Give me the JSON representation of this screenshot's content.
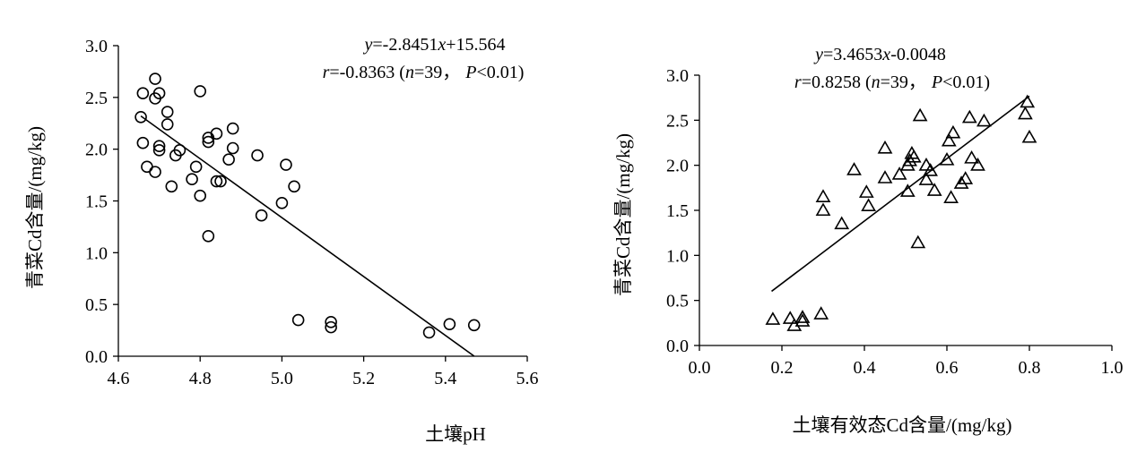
{
  "chart_data": [
    {
      "type": "scatter",
      "xlabel": "土壤pH",
      "ylabel": "青菜Cd含量/(mg/kg)",
      "xlim": [
        4.6,
        5.6
      ],
      "ylim": [
        0,
        3
      ],
      "x_ticks": [
        "4.6",
        "4.8",
        "5.0",
        "5.2",
        "5.4",
        "5.6"
      ],
      "y_ticks": [
        "0.0",
        "0.5",
        "1.0",
        "1.5",
        "2.0",
        "2.5",
        "3.0"
      ],
      "marker": "circle",
      "equation_line1": {
        "y": "y",
        "rest": "=-2.8451",
        "x": "x",
        "tail": "+15.564"
      },
      "equation_line2": {
        "r": "r",
        "rest": "=-0.8363 (",
        "n": "n",
        "rest2": "=39，",
        "P": "P",
        "tail": "<0.01)"
      },
      "fit": {
        "slope": -2.8451,
        "intercept": 15.564,
        "x_range": [
          4.655,
          5.47
        ]
      },
      "points": [
        {
          "x": 4.655,
          "y": 2.31
        },
        {
          "x": 4.66,
          "y": 2.54
        },
        {
          "x": 4.66,
          "y": 2.06
        },
        {
          "x": 4.67,
          "y": 1.83
        },
        {
          "x": 4.69,
          "y": 2.68
        },
        {
          "x": 4.69,
          "y": 2.49
        },
        {
          "x": 4.69,
          "y": 1.78
        },
        {
          "x": 4.7,
          "y": 2.54
        },
        {
          "x": 4.7,
          "y": 2.03
        },
        {
          "x": 4.7,
          "y": 1.99
        },
        {
          "x": 4.72,
          "y": 2.36
        },
        {
          "x": 4.72,
          "y": 2.24
        },
        {
          "x": 4.73,
          "y": 1.64
        },
        {
          "x": 4.74,
          "y": 1.94
        },
        {
          "x": 4.75,
          "y": 1.99
        },
        {
          "x": 4.78,
          "y": 1.71
        },
        {
          "x": 4.79,
          "y": 1.83
        },
        {
          "x": 4.8,
          "y": 2.56
        },
        {
          "x": 4.8,
          "y": 1.55
        },
        {
          "x": 4.82,
          "y": 2.11
        },
        {
          "x": 4.82,
          "y": 2.07
        },
        {
          "x": 4.82,
          "y": 1.16
        },
        {
          "x": 4.84,
          "y": 2.15
        },
        {
          "x": 4.84,
          "y": 1.69
        },
        {
          "x": 4.85,
          "y": 1.69
        },
        {
          "x": 4.87,
          "y": 1.9
        },
        {
          "x": 4.88,
          "y": 2.2
        },
        {
          "x": 4.88,
          "y": 2.01
        },
        {
          "x": 4.94,
          "y": 1.94
        },
        {
          "x": 4.95,
          "y": 1.36
        },
        {
          "x": 5.0,
          "y": 1.48
        },
        {
          "x": 5.01,
          "y": 1.85
        },
        {
          "x": 5.03,
          "y": 1.64
        },
        {
          "x": 5.04,
          "y": 0.35
        },
        {
          "x": 5.12,
          "y": 0.33
        },
        {
          "x": 5.12,
          "y": 0.28
        },
        {
          "x": 5.36,
          "y": 0.23
        },
        {
          "x": 5.41,
          "y": 0.31
        },
        {
          "x": 5.47,
          "y": 0.3
        }
      ]
    },
    {
      "type": "scatter",
      "xlabel": "土壤有效态Cd含量/(mg/kg)",
      "ylabel": "青菜Cd含量/(mg/kg)",
      "xlim": [
        0,
        1
      ],
      "ylim": [
        0,
        3
      ],
      "x_ticks": [
        "0.0",
        "0.2",
        "0.4",
        "0.6",
        "0.8",
        "1.0"
      ],
      "y_ticks": [
        "0.0",
        "0.5",
        "1.0",
        "1.5",
        "2.0",
        "2.5",
        "3.0"
      ],
      "marker": "triangle",
      "equation_line1": {
        "y": "y",
        "rest": "=3.4653",
        "x": "x",
        "tail": "-0.0048"
      },
      "equation_line2": {
        "r": "r",
        "rest": "=0.8258 (",
        "n": "n",
        "rest2": "=39，",
        "P": "P",
        "tail": "<0.01)"
      },
      "fit": {
        "slope": 3.4653,
        "intercept": -0.0048,
        "x_range": [
          0.175,
          0.8
        ]
      },
      "points": [
        {
          "x": 0.178,
          "y": 0.29
        },
        {
          "x": 0.22,
          "y": 0.3
        },
        {
          "x": 0.23,
          "y": 0.22
        },
        {
          "x": 0.25,
          "y": 0.31
        },
        {
          "x": 0.25,
          "y": 0.27
        },
        {
          "x": 0.295,
          "y": 0.35
        },
        {
          "x": 0.3,
          "y": 1.65
        },
        {
          "x": 0.3,
          "y": 1.5
        },
        {
          "x": 0.345,
          "y": 1.35
        },
        {
          "x": 0.375,
          "y": 1.95
        },
        {
          "x": 0.405,
          "y": 1.7
        },
        {
          "x": 0.41,
          "y": 1.55
        },
        {
          "x": 0.45,
          "y": 2.19
        },
        {
          "x": 0.45,
          "y": 1.86
        },
        {
          "x": 0.485,
          "y": 1.9
        },
        {
          "x": 0.505,
          "y": 2.0
        },
        {
          "x": 0.505,
          "y": 1.71
        },
        {
          "x": 0.51,
          "y": 2.05
        },
        {
          "x": 0.515,
          "y": 2.13
        },
        {
          "x": 0.52,
          "y": 2.09
        },
        {
          "x": 0.53,
          "y": 1.14
        },
        {
          "x": 0.535,
          "y": 2.55
        },
        {
          "x": 0.55,
          "y": 2.0
        },
        {
          "x": 0.55,
          "y": 1.84
        },
        {
          "x": 0.56,
          "y": 1.94
        },
        {
          "x": 0.57,
          "y": 1.72
        },
        {
          "x": 0.6,
          "y": 2.06
        },
        {
          "x": 0.605,
          "y": 2.27
        },
        {
          "x": 0.61,
          "y": 1.64
        },
        {
          "x": 0.615,
          "y": 2.36
        },
        {
          "x": 0.635,
          "y": 1.8
        },
        {
          "x": 0.645,
          "y": 1.85
        },
        {
          "x": 0.655,
          "y": 2.53
        },
        {
          "x": 0.66,
          "y": 2.08
        },
        {
          "x": 0.675,
          "y": 2.0
        },
        {
          "x": 0.69,
          "y": 2.49
        },
        {
          "x": 0.79,
          "y": 2.57
        },
        {
          "x": 0.795,
          "y": 2.7
        },
        {
          "x": 0.8,
          "y": 2.31
        }
      ]
    }
  ]
}
